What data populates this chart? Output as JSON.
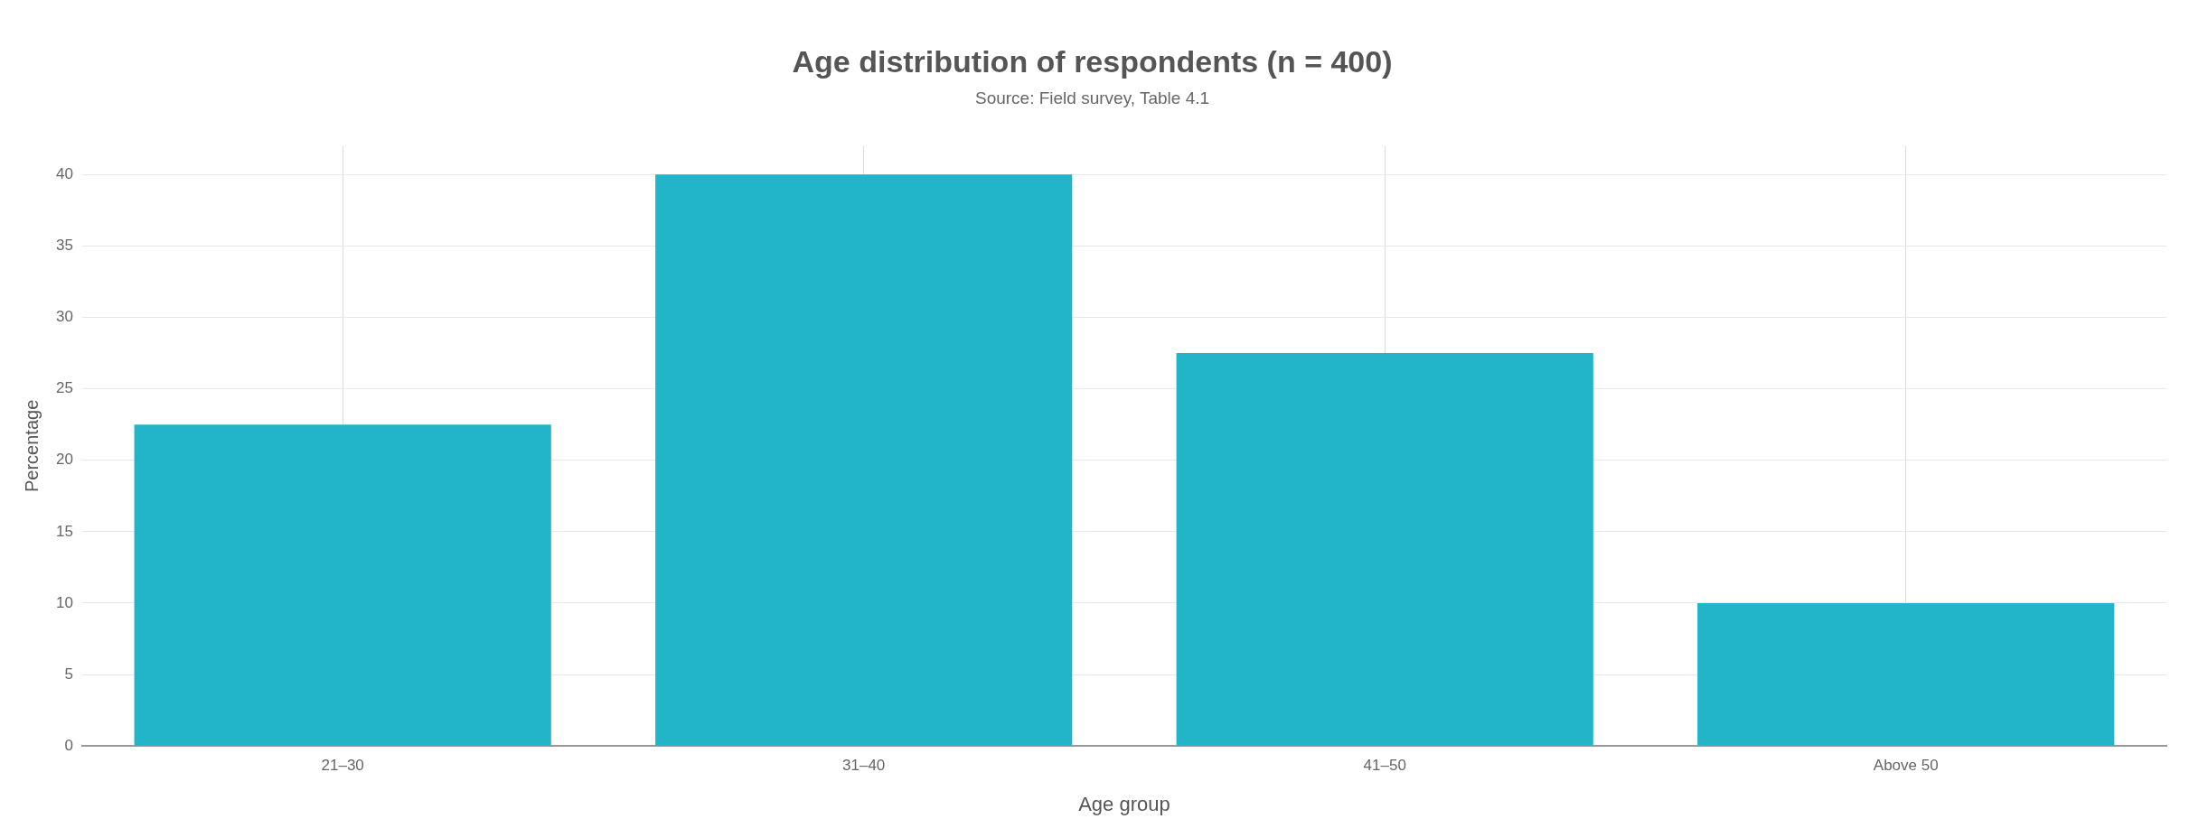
{
  "chart_data": {
    "type": "bar",
    "title": "Age distribution of respondents (n = 400)",
    "subtitle": "Source: Field survey, Table 4.1",
    "xlabel": "Age group",
    "ylabel": "Percentage",
    "categories": [
      "21–30",
      "31–40",
      "41–50",
      "Above 50"
    ],
    "values": [
      22.5,
      40,
      27.5,
      10
    ],
    "color": "#22b5c9",
    "ylim": [
      0,
      42
    ],
    "yticks": [
      0,
      5,
      10,
      15,
      20,
      25,
      30,
      35,
      40
    ],
    "grid": true,
    "legend": false
  }
}
